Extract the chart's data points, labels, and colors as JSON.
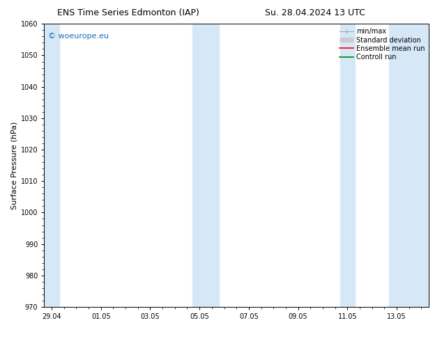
{
  "title_left": "ENS Time Series Edmonton (IAP)",
  "title_right": "Su. 28.04.2024 13 UTC",
  "ylabel": "Surface Pressure (hPa)",
  "ylim": [
    970,
    1060
  ],
  "yticks": [
    970,
    980,
    990,
    1000,
    1010,
    1020,
    1030,
    1040,
    1050,
    1060
  ],
  "xtick_labels": [
    "29.04",
    "01.05",
    "03.05",
    "05.05",
    "07.05",
    "09.05",
    "11.05",
    "13.05"
  ],
  "xtick_positions": [
    0,
    2,
    4,
    6,
    8,
    10,
    12,
    14
  ],
  "xmin": -0.3,
  "xmax": 15.3,
  "shaded_bands": [
    {
      "xmin": -0.3,
      "xmax": 0.3
    },
    {
      "xmin": 5.7,
      "xmax": 6.8
    },
    {
      "xmin": 11.7,
      "xmax": 12.3
    },
    {
      "xmin": 13.7,
      "xmax": 15.3
    }
  ],
  "shade_color": "#d6e8f7",
  "background_color": "#ffffff",
  "watermark_text": "© woeurope.eu",
  "watermark_color": "#1a6aba",
  "legend_labels": [
    "min/max",
    "Standard deviation",
    "Ensemble mean run",
    "Controll run"
  ],
  "legend_colors": [
    "#aaaaaa",
    "#cccccc",
    "#ff0000",
    "#008000"
  ],
  "title_fontsize": 9,
  "tick_fontsize": 7,
  "ylabel_fontsize": 8,
  "legend_fontsize": 7,
  "watermark_fontsize": 8
}
